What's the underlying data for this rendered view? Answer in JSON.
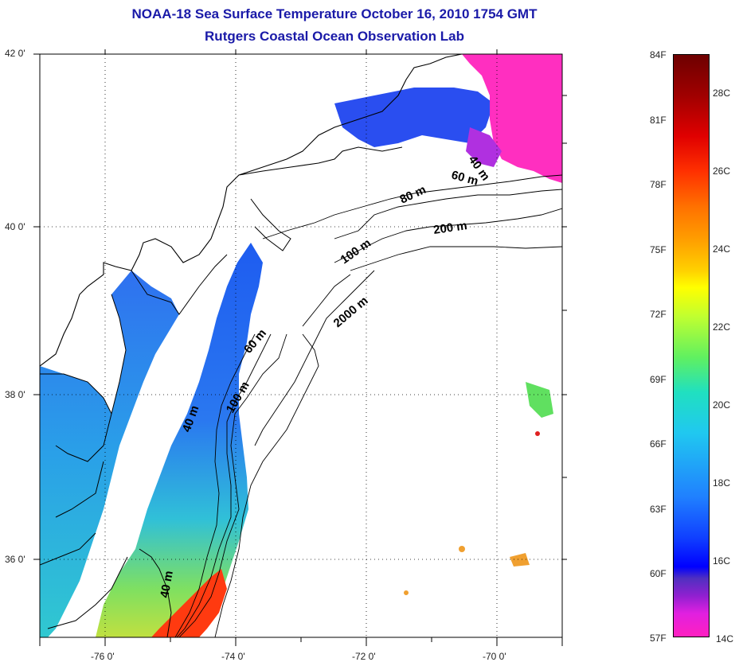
{
  "title": {
    "line1": "NOAA-18 Sea Surface Temperature October 16, 2010 1754 GMT",
    "line2": "Rutgers Coastal Ocean Observation Lab"
  },
  "map": {
    "latitude_labels": [
      "42 0'",
      "40 0'",
      "38 0'",
      "36 0'"
    ],
    "longitude_labels": [
      "-76 0'",
      "-74 0'",
      "-72 0'",
      "-70 0'"
    ],
    "depth_contour_labels": [
      "40 m",
      "60 m",
      "80 m",
      "200 m",
      "100 m",
      "2000 m",
      "60 m",
      "40 m",
      "100 m",
      "40 m"
    ],
    "colors": {
      "land_outline": "#000000",
      "graticule": "#000000",
      "background": "#ffffff"
    }
  },
  "colorbar": {
    "fahrenheit_labels": [
      "84F",
      "81F",
      "78F",
      "75F",
      "72F",
      "69F",
      "66F",
      "63F",
      "60F",
      "57F"
    ],
    "celsius_labels": [
      "28C",
      "26C",
      "24C",
      "22C",
      "20C",
      "18C",
      "16C",
      "14C"
    ]
  }
}
